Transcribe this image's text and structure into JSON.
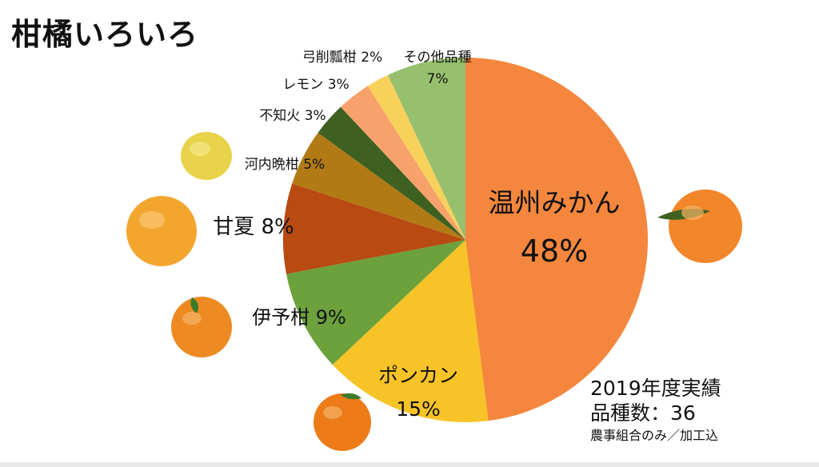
{
  "title": "柑橘いろいろ",
  "chart_data": {
    "type": "pie",
    "unit": "%",
    "slices": [
      {
        "name": "温州みかん",
        "value": 48,
        "color": "#F4873D"
      },
      {
        "name": "ポンカン",
        "value": 15,
        "color": "#F8C327"
      },
      {
        "name": "伊予柑",
        "value": 9,
        "color": "#6CA13C"
      },
      {
        "name": "甘夏",
        "value": 8,
        "color": "#B84A12"
      },
      {
        "name": "河内晩柑",
        "value": 5,
        "color": "#B27A14"
      },
      {
        "name": "不知火",
        "value": 3,
        "color": "#3E6121"
      },
      {
        "name": "レモン",
        "value": 3,
        "color": "#F6A26A"
      },
      {
        "name": "弓削瓢柑",
        "value": 2,
        "color": "#F8D15A"
      },
      {
        "name": "その他品種",
        "value": 7,
        "color": "#97C06E"
      }
    ],
    "labels": [
      {
        "line1": "温州みかん",
        "line2": "48%"
      },
      {
        "line1": "ポンカン",
        "line2": "15%"
      },
      {
        "line1": "伊予柑 9%"
      },
      {
        "line1": "甘夏 8%"
      },
      {
        "line1": "河内晩柑 5%"
      },
      {
        "line1": "不知火 3%"
      },
      {
        "line1": "レモン 3%"
      },
      {
        "line1": "弓削瓢柑 2%"
      },
      {
        "line1": "その他品種",
        "line2": "7%"
      }
    ]
  },
  "note": {
    "line1": "2019年度実績",
    "line2": "品種数：36",
    "line3": "農事組合のみ／加工込"
  }
}
